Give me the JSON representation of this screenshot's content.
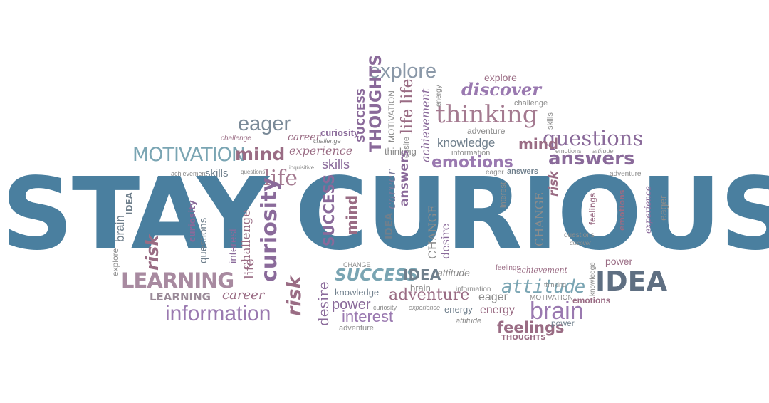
{
  "headline": {
    "stay": "STAY",
    "curious": "CURIOUS"
  },
  "colors": {
    "headline": "#4a7f9f",
    "purple": "#8a6a9a",
    "mauve": "#9a6c84",
    "teal": "#6a9aaa",
    "grey": "#8c8c8c",
    "slate": "#6f7f8c"
  },
  "words": {
    "explore_top": "explore",
    "explore_small": "explore",
    "discover_top": "discover",
    "challenge_top": "challenge",
    "thinking_big": "thinking",
    "questions_big": "questions",
    "eager_big": "eager",
    "career_a": "career",
    "curiosity_a": "curiosity",
    "challenge_a": "challenge",
    "challenge_b": "challenge",
    "motivation_big": "MOTIVATION",
    "mind_a": "mind",
    "experience_a": "experience",
    "skills_a": "skills",
    "thinking_small": "thinking",
    "adventure_a": "adventure",
    "knowledge_a": "knowledge",
    "mind_b": "mind",
    "information_a": "information",
    "emotions_big": "emotions",
    "answers_big": "answers",
    "emotions_a": "emotions",
    "attitude_a": "attitude",
    "eager_a": "eager",
    "answers_a": "answers",
    "adventure_b": "adventure",
    "achievement_a": "achievement",
    "skills_b": "skills",
    "questions_a": "questions",
    "inquisitive_a": "inquisitive",
    "life_big": "life",
    "success_v1": "SUCCESS",
    "thoughts_v1": "THOUGHTS",
    "motivation_v": "MOTIVATION",
    "life_v1": "life life",
    "achievement_v": "achievement",
    "energy_v": "energy",
    "skills_v": "skills",
    "desire_a": "desire",
    "explore_b": "explore",
    "brain_v": "brain",
    "idea_v": "IDEA",
    "curiosity_v": "curiosity",
    "questions_v": "questions",
    "interest_v": "interest",
    "challenge_v": "challenge",
    "life_v2": "life",
    "risk_v1": "risk",
    "curiosity_big_v": "curiosity",
    "success_v2": "SUCCESS",
    "mind_v": "mind",
    "idea_v2": "IDEA",
    "career_v": "career",
    "answers_v": "answers",
    "change_v": "CHANGE",
    "desire_v": "desire",
    "interest_v2": "interest",
    "change_v2": "CHANGE",
    "risk_v2": "risk",
    "feelings_v": "feelings",
    "emotions_v": "emotions",
    "experience_v": "experience",
    "eager_v": "eager",
    "questions_b": "questions",
    "discover_b": "discover",
    "power_a": "power",
    "learning_big": "LEARNING",
    "learning_b": "LEARNING",
    "career_b": "career",
    "information_big": "information",
    "risk_v3": "risk",
    "desire_v2": "desire",
    "success_big": "SUCCESS",
    "idea_a": "IDEA",
    "knowledge_b": "knowledge",
    "power_b": "power",
    "interest_big": "interest",
    "adventure_c": "adventure",
    "adventure_d": "adventure",
    "brain_a": "brain",
    "attitude_b": "attitude",
    "eager_b": "eager",
    "feelings_a": "feelings",
    "achievement_b": "achievement",
    "information_b": "information",
    "attitude_big": "attitude",
    "idea_big": "IDEA",
    "brain_big": "brain",
    "energy_a": "energy",
    "energy_b": "energy",
    "attitude_c": "attitude",
    "feelings_big": "feelings",
    "thoughts_a": "THOUGHTS",
    "power_c": "power",
    "emotions_b": "emotions",
    "motivation_small": "MOTIVATION",
    "curiosity_small": "curiosity",
    "experience_small": "experience",
    "change_small": "CHANGE",
    "knowledge_v": "knowledge",
    "thinking_v": "thinking"
  }
}
